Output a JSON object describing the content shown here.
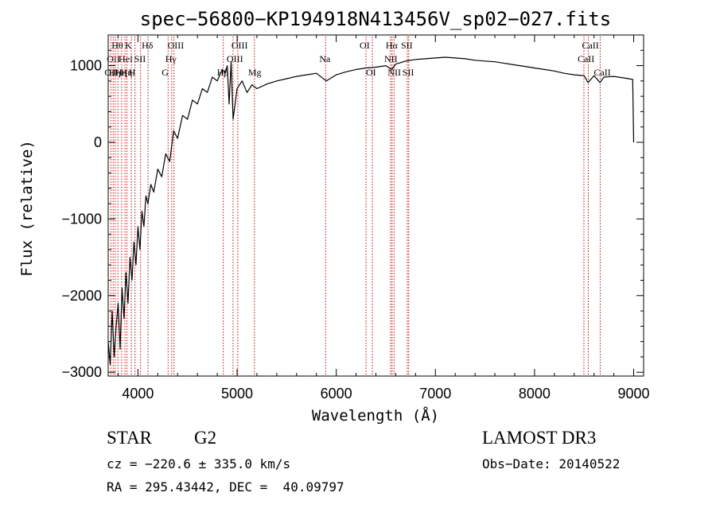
{
  "chart_data": {
    "type": "line",
    "title": "spec−56800−KP194918N413456V_sp02−027.fits",
    "xlabel": "Wavelength (Å)",
    "ylabel": "Flux (relative)",
    "xlim": [
      3700,
      9100
    ],
    "ylim": [
      -3050,
      1400
    ],
    "x_ticks": [
      4000,
      5000,
      6000,
      7000,
      8000,
      9000
    ],
    "x_tick_labels": [
      "4000",
      "5000",
      "6000",
      "7000",
      "8000",
      "9000"
    ],
    "y_ticks": [
      1000,
      0,
      -1000,
      -2000,
      -3000
    ],
    "y_tick_labels": [
      "1000",
      "0",
      "−1000",
      "−2000",
      "−3000"
    ],
    "grid": false,
    "line_color": "#000000",
    "marker_color": "#cc0000",
    "series": [
      {
        "x": [
          3700,
          3720,
          3740,
          3760,
          3780,
          3800,
          3820,
          3840,
          3860,
          3880,
          3900,
          3920,
          3940,
          3960,
          3980,
          4000,
          4020,
          4040,
          4060,
          4080,
          4100,
          4130,
          4160,
          4200,
          4240,
          4280,
          4320,
          4360,
          4400,
          4450,
          4500,
          4550,
          4600,
          4650,
          4700,
          4750,
          4800,
          4850,
          4880,
          4900,
          4920,
          4940,
          4960,
          5000,
          5050,
          5100,
          5150,
          5200,
          5300,
          5400,
          5500,
          5600,
          5700,
          5800,
          5900,
          6000,
          6100,
          6200,
          6300,
          6400,
          6500,
          6560,
          6600,
          6700,
          6800,
          6900,
          7000,
          7100,
          7200,
          7300,
          7400,
          7500,
          7600,
          7700,
          7800,
          7900,
          8000,
          8100,
          8200,
          8300,
          8400,
          8500,
          8540,
          8600,
          8660,
          8700,
          8800,
          8900,
          8990,
          9000
        ],
        "y": [
          -2600,
          -2900,
          -2200,
          -2800,
          -2400,
          -2100,
          -2700,
          -1900,
          -2300,
          -1700,
          -2100,
          -1500,
          -1800,
          -1300,
          -1600,
          -1100,
          -1400,
          -900,
          -1100,
          -700,
          -800,
          -550,
          -650,
          -350,
          -450,
          -150,
          -250,
          150,
          50,
          350,
          300,
          550,
          500,
          700,
          650,
          850,
          800,
          950,
          900,
          1000,
          500,
          1050,
          300,
          700,
          800,
          650,
          750,
          700,
          760,
          800,
          830,
          860,
          880,
          900,
          800,
          880,
          920,
          950,
          970,
          980,
          1000,
          950,
          1020,
          1060,
          1080,
          1090,
          1100,
          1110,
          1100,
          1090,
          1070,
          1060,
          1050,
          1030,
          1010,
          990,
          970,
          950,
          930,
          900,
          880,
          870,
          780,
          870,
          780,
          850,
          860,
          840,
          820,
          0
        ]
      }
    ],
    "line_markers": [
      {
        "x": 3727,
        "label": "OII",
        "row": 2
      },
      {
        "x": 3750,
        "label": "OII",
        "row": 1
      },
      {
        "x": 3771,
        "label": "Hη",
        "row": 2
      },
      {
        "x": 3798,
        "label": "Hθ",
        "row": 0
      },
      {
        "x": 3835,
        "label": "Hη",
        "row": 2
      },
      {
        "x": 3869,
        "label": "HeI",
        "row": 1
      },
      {
        "x": 3889,
        "label": "Hη",
        "row": 2
      },
      {
        "x": 3934,
        "label": "K",
        "row": 0
      },
      {
        "x": 3970,
        "label": "H",
        "row": 2
      },
      {
        "x": 4026,
        "label": "SII",
        "row": 1
      },
      {
        "x": 4102,
        "label": "Hδ",
        "row": 0
      },
      {
        "x": 4304,
        "label": "G",
        "row": 2
      },
      {
        "x": 4340,
        "label": "Hγ",
        "row": 1
      },
      {
        "x": 4363,
        "label": "OIII",
        "row": 0
      },
      {
        "x": 4861,
        "label": "Hβ",
        "row": 2
      },
      {
        "x": 4959,
        "label": "OIII",
        "row": 1
      },
      {
        "x": 5007,
        "label": "OIII",
        "row": 0
      },
      {
        "x": 5175,
        "label": "Mg",
        "row": 2
      },
      {
        "x": 5893,
        "label": "Na",
        "row": 1
      },
      {
        "x": 6300,
        "label": "OI",
        "row": 0
      },
      {
        "x": 6364,
        "label": "OI",
        "row": 2
      },
      {
        "x": 6548,
        "label": "NII",
        "row": 1
      },
      {
        "x": 6563,
        "label": "Hα",
        "row": 0
      },
      {
        "x": 6583,
        "label": "NII",
        "row": 2
      },
      {
        "x": 6717,
        "label": "SII",
        "row": 0
      },
      {
        "x": 6731,
        "label": "SII",
        "row": 2
      },
      {
        "x": 8498,
        "label": "CaII",
        "row": 1
      },
      {
        "x": 8542,
        "label": "CaII",
        "row": 0
      },
      {
        "x": 8662,
        "label": "CaII",
        "row": 2
      }
    ]
  },
  "info": {
    "object_type": "STAR",
    "subclass": "G2",
    "survey": "LAMOST DR3",
    "redshift_line": "cz = −220.6 ± 335.0 km/s",
    "obs_date_line": "Obs−Date: 20140522",
    "coords_line": "RA = 295.43442, DEC =  40.09797"
  }
}
